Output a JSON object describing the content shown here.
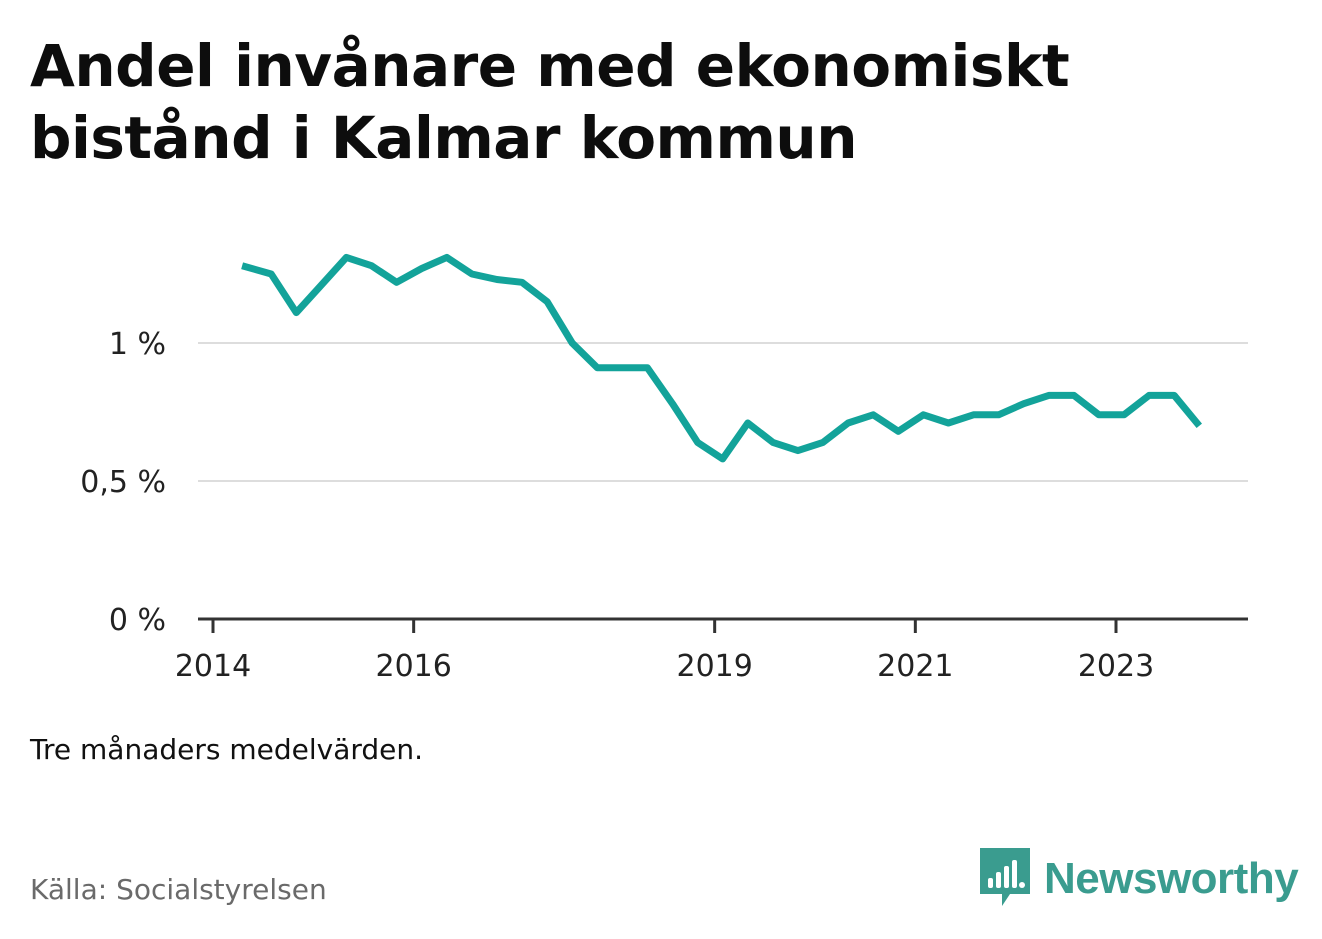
{
  "title": "Andel invånare med ekonomiskt bistånd i Kalmar kommun",
  "note": "Tre månaders medelvärden.",
  "source": "Källa: Socialstyrelsen",
  "brand": {
    "name": "Newsworthy",
    "icon": "newsworthy-logo-icon",
    "color": "#3a9c8f"
  },
  "colors": {
    "line": "#13a39a",
    "grid": "#dddddd",
    "axis": "#333333"
  },
  "chart_data": {
    "type": "line",
    "title": "Andel invånare med ekonomiskt bistånd i Kalmar kommun",
    "xlabel": "",
    "ylabel": "",
    "grid": true,
    "xlim": [
      2014,
      2024.3
    ],
    "ylim": [
      0,
      1.3
    ],
    "x_ticks": [
      {
        "value": 2014,
        "label": "2014"
      },
      {
        "value": 2016,
        "label": "2016"
      },
      {
        "value": 2019,
        "label": "2019"
      },
      {
        "value": 2021,
        "label": "2021"
      },
      {
        "value": 2023,
        "label": "2023"
      }
    ],
    "y_ticks": [
      {
        "value": 0,
        "label": "0 %"
      },
      {
        "value": 0.5,
        "label": "0,5 %"
      },
      {
        "value": 1,
        "label": "1 %"
      }
    ],
    "series": [
      {
        "x": [
          2014.29,
          2014.58,
          2014.83,
          2015.08,
          2015.33,
          2015.58,
          2015.83,
          2016.08,
          2016.33,
          2016.58,
          2016.83,
          2017.08,
          2017.33,
          2017.58,
          2017.83,
          2018.08,
          2018.33,
          2018.58,
          2018.83,
          2019.08,
          2019.33,
          2019.58,
          2019.83,
          2020.08,
          2020.33,
          2020.58,
          2020.83,
          2021.08,
          2021.33,
          2021.58,
          2021.83,
          2022.08,
          2022.33,
          2022.58,
          2022.83,
          2023.08,
          2023.33,
          2023.58,
          2023.83
        ],
        "values": [
          1.28,
          1.25,
          1.11,
          1.21,
          1.31,
          1.28,
          1.22,
          1.27,
          1.31,
          1.25,
          1.23,
          1.22,
          1.15,
          1.0,
          0.91,
          0.91,
          0.91,
          0.78,
          0.64,
          0.58,
          0.71,
          0.64,
          0.61,
          0.64,
          0.71,
          0.74,
          0.68,
          0.74,
          0.71,
          0.74,
          0.74,
          0.78,
          0.81,
          0.81,
          0.74,
          0.74,
          0.81,
          0.81,
          0.7
        ]
      }
    ]
  }
}
